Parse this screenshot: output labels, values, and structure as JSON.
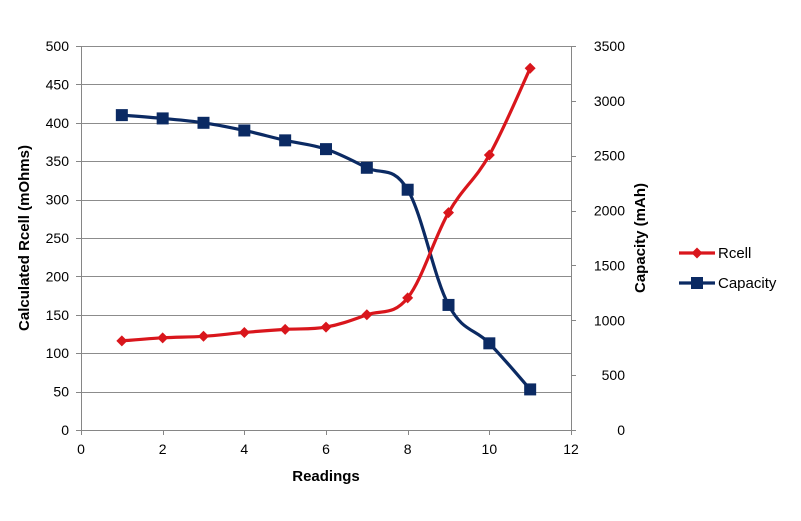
{
  "chart_data": {
    "type": "line",
    "title": "",
    "xlabel": "Readings",
    "ylabel_left": "Calculated Rcell (mOhms)",
    "ylabel_right": "Capacity (mAh)",
    "xlim": [
      0,
      12
    ],
    "ylim_left": [
      0,
      500
    ],
    "ylim_right": [
      0,
      3500
    ],
    "x_ticks": [
      0,
      2,
      4,
      6,
      8,
      10,
      12
    ],
    "y_left_ticks": [
      0,
      50,
      100,
      150,
      200,
      250,
      300,
      350,
      400,
      450,
      500
    ],
    "y_right_ticks": [
      0,
      500,
      1000,
      1500,
      2000,
      2500,
      3000,
      3500
    ],
    "grid": "horizontal",
    "legend_position": "right",
    "series": [
      {
        "name": "Rcell",
        "axis": "left",
        "color": "#d9161c",
        "marker": "diamond",
        "x": [
          1,
          2,
          3,
          4,
          5,
          6,
          7,
          8,
          9,
          10,
          11
        ],
        "y": [
          116,
          120,
          122,
          127,
          131,
          134,
          150,
          172,
          283,
          358,
          471
        ]
      },
      {
        "name": "Capacity",
        "axis": "right",
        "color": "#0b2a63",
        "marker": "square",
        "x": [
          1,
          2,
          3,
          4,
          5,
          6,
          7,
          8,
          9,
          10,
          11
        ],
        "y": [
          2870,
          2840,
          2800,
          2730,
          2640,
          2560,
          2390,
          2190,
          1140,
          790,
          370
        ]
      }
    ]
  }
}
